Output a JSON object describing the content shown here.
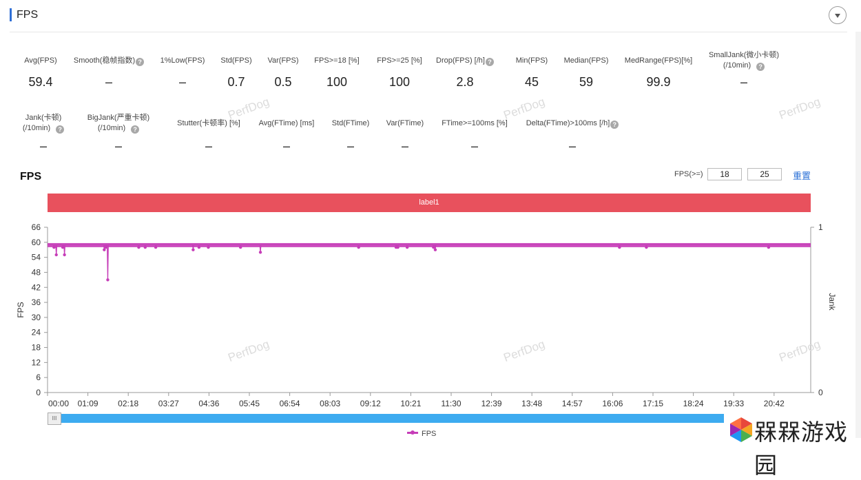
{
  "panel": {
    "title": "FPS"
  },
  "metrics_row1": [
    {
      "label": "Avg(FPS)",
      "value": "59.4",
      "help": false
    },
    {
      "label": "Smooth(稳帧指数)",
      "value": "–",
      "help": true
    },
    {
      "label": "1%Low(FPS)",
      "value": "–",
      "help": false
    },
    {
      "label": "Std(FPS)",
      "value": "0.7",
      "help": false
    },
    {
      "label": "Var(FPS)",
      "value": "0.5",
      "help": false
    },
    {
      "label": "FPS>=18 [%]",
      "value": "100",
      "help": false
    },
    {
      "label": "FPS>=25 [%]",
      "value": "100",
      "help": false
    },
    {
      "label": "Drop(FPS) [/h]",
      "value": "2.8",
      "help": true
    },
    {
      "label": "Min(FPS)",
      "value": "45",
      "help": false
    },
    {
      "label": "Median(FPS)",
      "value": "59",
      "help": false
    },
    {
      "label": "MedRange(FPS)[%]",
      "value": "99.9",
      "help": false
    },
    {
      "label": "SmallJank(微小卡顿)",
      "label2": "(/10min)",
      "value": "–",
      "help": true
    }
  ],
  "metrics_row2": [
    {
      "label": "Jank(卡顿)",
      "label2": "(/10min)",
      "value": "–",
      "help": true
    },
    {
      "label": "BigJank(严重卡顿)",
      "label2": "(/10min)",
      "value": "–",
      "help": true
    },
    {
      "label": "Stutter(卡顿率) [%]",
      "value": "–",
      "help": false
    },
    {
      "label": "Avg(FTime) [ms]",
      "value": "–",
      "help": false
    },
    {
      "label": "Std(FTime)",
      "value": "–",
      "help": false
    },
    {
      "label": "Var(FTime)",
      "value": "–",
      "help": false
    },
    {
      "label": "FTime>=100ms [%]",
      "value": "–",
      "help": false
    },
    {
      "label": "Delta(FTime)>100ms [/h]",
      "value": "–",
      "help": true
    }
  ],
  "help_glyph": "?",
  "chart_header": {
    "title": "FPS",
    "threshold_label": "FPS(>=)",
    "threshold_1": "18",
    "threshold_2": "25",
    "reset_label": "重置"
  },
  "band_label": "label1",
  "watermark_text": "PerfDog",
  "scroll_handle_glyph": "III",
  "legend_label": "FPS",
  "site_logo_text": "槑槑游戏园",
  "colors": {
    "accent": "#2f6fd6",
    "series": "#c63db8",
    "band": "#e8515d",
    "slider": "#3dabf0",
    "link": "#2a6fd6"
  },
  "chart_data": {
    "type": "line",
    "xlabel": "",
    "ylabel": "FPS",
    "y2label": "Jank",
    "ylim": [
      0,
      66
    ],
    "y2lim": [
      0,
      1
    ],
    "y_ticks": [
      "0",
      "6",
      "12",
      "18",
      "24",
      "30",
      "36",
      "42",
      "48",
      "54",
      "60",
      "66"
    ],
    "y2_ticks": [
      "0",
      "1"
    ],
    "x_ticks": [
      "00:00",
      "01:09",
      "02:18",
      "03:27",
      "04:36",
      "05:45",
      "06:54",
      "08:03",
      "09:12",
      "10:21",
      "11:30",
      "12:39",
      "13:48",
      "14:57",
      "16:06",
      "17:15",
      "18:24",
      "19:33",
      "20:42"
    ],
    "x_range_seconds": [
      0,
      1305
    ],
    "baseline_fps": 59,
    "series": [
      {
        "name": "FPS",
        "dips": [
          {
            "t": 11,
            "fps": 58
          },
          {
            "t": 15,
            "fps": 55
          },
          {
            "t": 26,
            "fps": 58
          },
          {
            "t": 29,
            "fps": 55
          },
          {
            "t": 97,
            "fps": 57
          },
          {
            "t": 100,
            "fps": 58
          },
          {
            "t": 103,
            "fps": 45
          },
          {
            "t": 156,
            "fps": 58
          },
          {
            "t": 167,
            "fps": 58
          },
          {
            "t": 185,
            "fps": 58
          },
          {
            "t": 249,
            "fps": 57
          },
          {
            "t": 259,
            "fps": 58
          },
          {
            "t": 275,
            "fps": 58
          },
          {
            "t": 330,
            "fps": 58
          },
          {
            "t": 364,
            "fps": 56
          },
          {
            "t": 532,
            "fps": 58
          },
          {
            "t": 596,
            "fps": 58
          },
          {
            "t": 599,
            "fps": 58
          },
          {
            "t": 615,
            "fps": 58
          },
          {
            "t": 660,
            "fps": 58
          },
          {
            "t": 663,
            "fps": 57
          },
          {
            "t": 978,
            "fps": 58
          },
          {
            "t": 1024,
            "fps": 58
          },
          {
            "t": 1233,
            "fps": 58
          }
        ]
      }
    ]
  }
}
